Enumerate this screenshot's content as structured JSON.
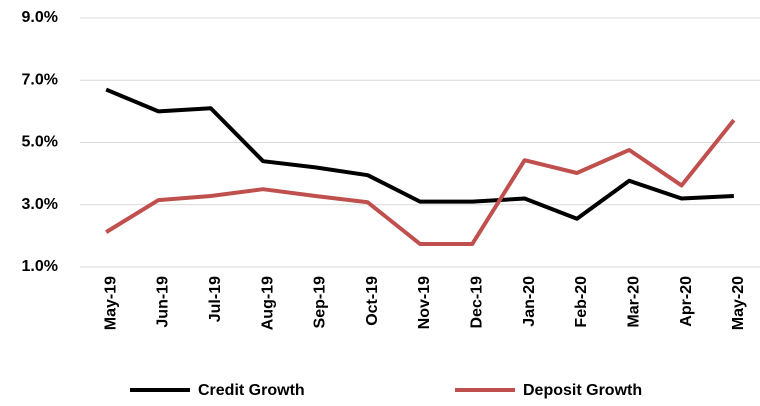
{
  "chart_data": {
    "type": "line",
    "categories": [
      "May-19",
      "Jun-19",
      "Jul-19",
      "Aug-19",
      "Sep-19",
      "Oct-19",
      "Nov-19",
      "Dec-19",
      "Jan-20",
      "Feb-20",
      "Mar-20",
      "Apr-20",
      "May-20"
    ],
    "series": [
      {
        "name": "Credit Growth",
        "color": "#000000",
        "values": [
          6.7,
          6.0,
          6.1,
          4.4,
          4.2,
          3.95,
          3.1,
          3.1,
          3.2,
          2.55,
          3.77,
          3.2,
          3.28
        ]
      },
      {
        "name": "Deposit Growth",
        "color": "#c0504d",
        "values": [
          2.12,
          3.15,
          3.28,
          3.5,
          3.28,
          3.08,
          1.74,
          1.74,
          4.43,
          4.02,
          4.76,
          3.62,
          5.72
        ]
      }
    ],
    "ylim": [
      1,
      9
    ],
    "yticks": [
      {
        "value": 1,
        "label": "1.0%"
      },
      {
        "value": 3,
        "label": "3.0%"
      },
      {
        "value": 5,
        "label": "5.0%"
      },
      {
        "value": 7,
        "label": "7.0%"
      },
      {
        "value": 9,
        "label": "9.0%"
      }
    ],
    "grid": true
  }
}
